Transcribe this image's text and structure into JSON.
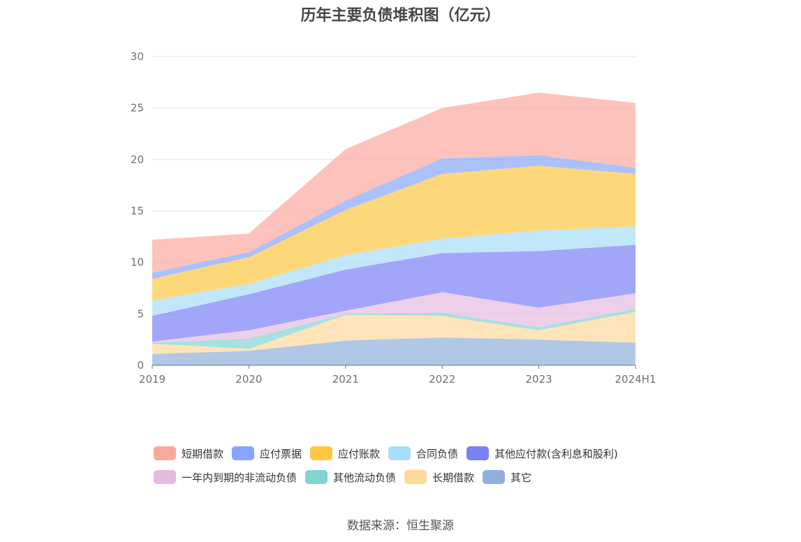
{
  "chart_data": {
    "type": "area",
    "stacked": true,
    "title": "历年主要负债堆积图（亿元）",
    "categories": [
      "2019",
      "2020",
      "2021",
      "2022",
      "2023",
      "2024H1"
    ],
    "ylim": [
      0,
      30
    ],
    "yticks": [
      0,
      5,
      10,
      15,
      20,
      25,
      30
    ],
    "grid": true,
    "legend_position": "bottom",
    "series": [
      {
        "name": "其它",
        "color": "#8fb0dc",
        "values": [
          1.1,
          1.4,
          2.4,
          2.7,
          2.5,
          2.2
        ]
      },
      {
        "name": "长期借款",
        "color": "#fdd89a",
        "values": [
          1.0,
          0.2,
          2.5,
          2.1,
          0.9,
          3.0
        ]
      },
      {
        "name": "其他流动负债",
        "color": "#82d3d3",
        "values": [
          0.1,
          1.0,
          0.1,
          0.3,
          0.3,
          0.3
        ]
      },
      {
        "name": "一年内到期的非流动负债",
        "color": "#e6bbe0",
        "values": [
          0.1,
          0.8,
          0.3,
          2.0,
          1.9,
          1.5
        ]
      },
      {
        "name": "其他应付款(含利息和股利)",
        "color": "#7b80f5",
        "values": [
          2.5,
          3.5,
          4.0,
          3.8,
          5.5,
          4.7
        ]
      },
      {
        "name": "合同负债",
        "color": "#a7ddf8",
        "values": [
          1.5,
          1.0,
          1.4,
          1.4,
          2.0,
          1.8
        ]
      },
      {
        "name": "应付账款",
        "color": "#fcc843",
        "values": [
          2.1,
          2.6,
          4.4,
          6.3,
          6.3,
          5.1
        ]
      },
      {
        "name": "应付票据",
        "color": "#87a6fb",
        "values": [
          0.6,
          0.5,
          0.9,
          1.5,
          1.0,
          0.6
        ]
      },
      {
        "name": "短期借款",
        "color": "#fba89e",
        "values": [
          3.2,
          1.8,
          5.0,
          4.9,
          6.1,
          6.3
        ]
      }
    ]
  },
  "legend": [
    {
      "label": "短期借款",
      "color": "#fba89e"
    },
    {
      "label": "应付票据",
      "color": "#87a6fb"
    },
    {
      "label": "应付账款",
      "color": "#fcc843"
    },
    {
      "label": "合同负债",
      "color": "#a7ddf8"
    },
    {
      "label": "其他应付款(含利息和股利)",
      "color": "#7b80f5"
    },
    {
      "label": "一年内到期的非流动负债",
      "color": "#e6bbe0"
    },
    {
      "label": "其他流动负债",
      "color": "#82d3d3"
    },
    {
      "label": "长期借款",
      "color": "#fdd89a"
    },
    {
      "label": "其它",
      "color": "#8fb0dc"
    }
  ],
  "source": "数据来源：恒生聚源"
}
